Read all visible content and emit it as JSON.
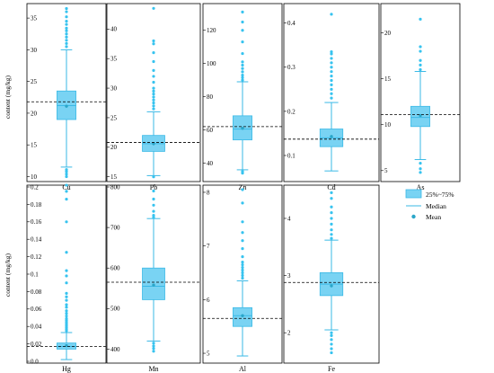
{
  "ylabel": "content (mg/kg)",
  "colors": {
    "box_fill": "#79d3f3",
    "box_edge": "#3ab9e6",
    "mean_marker": "#2aa6c9",
    "outlier": "#37c3ef",
    "reference_line": "#000000"
  },
  "legend": {
    "box_label": "25%~75%",
    "median_label": "Median",
    "mean_label": "Mean"
  },
  "chart_data": [
    {
      "type": "box",
      "element": "Cu",
      "ylim": [
        9.5,
        37
      ],
      "ticks": [
        10,
        15,
        20,
        25,
        30,
        35
      ],
      "q1": 19,
      "median": 21.2,
      "q3": 23.5,
      "mean": 21.1,
      "whisker_low": 11.5,
      "whisker_high": 30,
      "reference": 21.8,
      "outliers_high": [
        30.5,
        31,
        31.5,
        32,
        32.5,
        33,
        33.4,
        34,
        34.5,
        35.2,
        36,
        36.5
      ],
      "outliers_low": [
        10,
        10.4,
        10.8,
        11.1
      ]
    },
    {
      "type": "box",
      "element": "Pb",
      "ylim": [
        14.5,
        44
      ],
      "ticks": [
        15,
        20,
        25,
        30,
        35,
        40
      ],
      "q1": 19.3,
      "median": 20.6,
      "q3": 22,
      "mean": 20.6,
      "whisker_low": 15.2,
      "whisker_high": 26,
      "reference": 20.8,
      "outliers_high": [
        26.5,
        27,
        27.5,
        28,
        28.5,
        29,
        29.5,
        30,
        31,
        32,
        33,
        34.5,
        36,
        37.5,
        38,
        43.5
      ],
      "outliers_low": [
        15
      ]
    },
    {
      "type": "box",
      "element": "Zn",
      "ylim": [
        30,
        135
      ],
      "ticks": [
        40,
        60,
        80,
        100,
        120
      ],
      "q1": 54,
      "median": 60.5,
      "q3": 68.5,
      "mean": 61,
      "whisker_low": 36,
      "whisker_high": 89,
      "reference": 62,
      "outliers_high": [
        90,
        91.5,
        93,
        95,
        97,
        99,
        101,
        106,
        113,
        120,
        125,
        131
      ],
      "outliers_low": [
        34,
        35
      ]
    },
    {
      "type": "box",
      "element": "Cd",
      "ylim": [
        0.045,
        0.44
      ],
      "ticks": [
        0.1,
        0.2,
        0.3,
        0.4
      ],
      "q1": 0.12,
      "median": 0.14,
      "q3": 0.16,
      "mean": 0.143,
      "whisker_low": 0.065,
      "whisker_high": 0.22,
      "reference": 0.137,
      "outliers_high": [
        0.23,
        0.24,
        0.25,
        0.26,
        0.27,
        0.28,
        0.29,
        0.3,
        0.31,
        0.32,
        0.33,
        0.335,
        0.42
      ],
      "outliers_low": []
    },
    {
      "type": "box",
      "element": "As",
      "ylim": [
        4,
        23
      ],
      "ticks": [
        5,
        10,
        15,
        20
      ],
      "q1": 9.8,
      "median": 10.8,
      "q3": 12,
      "mean": 11,
      "whisker_low": 6.2,
      "whisker_high": 15.8,
      "reference": 11.1,
      "outliers_high": [
        16,
        16.5,
        17,
        18,
        18.5,
        21.5
      ],
      "outliers_low": [
        4.8,
        5.2,
        5.8
      ]
    },
    {
      "type": "box",
      "element": "Hg",
      "ylim": [
        0,
        0.2
      ],
      "ticks": [
        0.0,
        0.02,
        0.04,
        0.06,
        0.08,
        0.1,
        0.12,
        0.14,
        0.16,
        0.18,
        0.2
      ],
      "q1": 0.014,
      "median": 0.017,
      "q3": 0.021,
      "mean": 0.018,
      "whisker_low": 0.002,
      "whisker_high": 0.033,
      "reference": 0.017,
      "outliers_high": [
        0.035,
        0.037,
        0.039,
        0.041,
        0.043,
        0.045,
        0.047,
        0.049,
        0.052,
        0.055,
        0.058,
        0.062,
        0.065,
        0.07,
        0.074,
        0.078,
        0.09,
        0.098,
        0.104,
        0.125,
        0.16,
        0.186,
        0.195,
        0.202
      ],
      "outliers_low": []
    },
    {
      "type": "box",
      "element": "Mn",
      "ylim": [
        370,
        800
      ],
      "ticks": [
        400,
        500,
        600,
        700,
        800
      ],
      "q1": 522,
      "median": 555,
      "q3": 600,
      "mean": 558,
      "whisker_low": 420,
      "whisker_high": 722,
      "reference": 565,
      "outliers_high": [
        725,
        730,
        740,
        755,
        770,
        790
      ],
      "outliers_low": [
        395,
        402,
        408,
        415
      ]
    },
    {
      "type": "box",
      "element": "Al",
      "ylim": [
        4.85,
        8.1
      ],
      "ticks": [
        5,
        6,
        7,
        8
      ],
      "q1": 5.5,
      "median": 5.7,
      "q3": 5.85,
      "mean": 5.7,
      "whisker_low": 4.95,
      "whisker_high": 6.35,
      "reference": 5.65,
      "outliers_high": [
        6.4,
        6.45,
        6.5,
        6.55,
        6.6,
        6.65,
        6.7,
        6.8,
        6.95,
        7.1,
        7.25,
        7.45,
        7.8,
        8.05
      ],
      "outliers_low": []
    },
    {
      "type": "box",
      "element": "Fe",
      "ylim": [
        1.5,
        4.55
      ],
      "ticks": [
        2,
        3,
        4
      ],
      "q1": 2.65,
      "median": 2.85,
      "q3": 3.05,
      "mean": 2.82,
      "whisker_low": 2.05,
      "whisker_high": 3.62,
      "reference": 2.88,
      "outliers_high": [
        3.65,
        3.72,
        3.8,
        3.9,
        4.0,
        4.1,
        4.2,
        4.35,
        4.45
      ],
      "outliers_low": [
        1.65,
        1.72,
        1.8,
        1.88,
        1.95,
        2.0
      ]
    }
  ]
}
